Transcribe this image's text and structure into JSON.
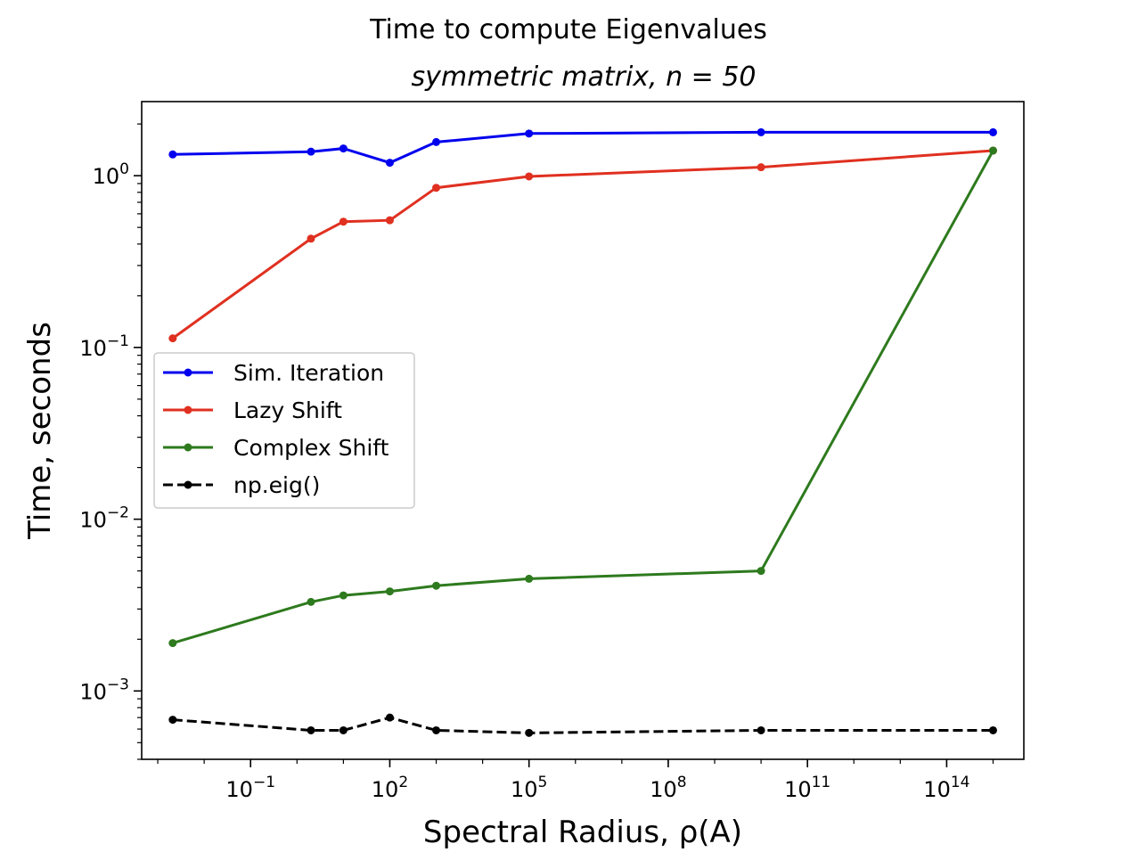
{
  "chart_data": {
    "type": "line",
    "title": "Time to compute Eigenvalues",
    "subtitle": "symmetric matrix, n = 50",
    "xlabel": "Spectral Radius, ρ(A)",
    "ylabel": "Time, seconds",
    "x_scale": "log",
    "y_scale": "log",
    "xlim": [
      0.00045,
      4600000000000000.0
    ],
    "ylim": [
      0.0004,
      2.7
    ],
    "grid": false,
    "legend_position": "center-left",
    "x_ticks": [
      {
        "value": 0.1,
        "label": "10",
        "exp": "−1"
      },
      {
        "value": 100,
        "label": "10",
        "exp": "2"
      },
      {
        "value": 100000,
        "label": "10",
        "exp": "5"
      },
      {
        "value": 100000000.0,
        "label": "10",
        "exp": "8"
      },
      {
        "value": 100000000000.0,
        "label": "10",
        "exp": "11"
      },
      {
        "value": 100000000000000.0,
        "label": "10",
        "exp": "14"
      }
    ],
    "y_ticks": [
      {
        "value": 1,
        "label": "10",
        "exp": "0"
      },
      {
        "value": 0.1,
        "label": "10",
        "exp": "−1"
      },
      {
        "value": 0.01,
        "label": "10",
        "exp": "−2"
      },
      {
        "value": 0.001,
        "label": "10",
        "exp": "−3"
      }
    ],
    "x": [
      0.0021,
      2.0,
      10.0,
      100,
      1000,
      100000,
      10000000000.0,
      1000000000000000.0
    ],
    "series": [
      {
        "name": "Sim. Iteration",
        "color": "#0000ee",
        "dash": false,
        "values": [
          1.33,
          1.38,
          1.44,
          1.19,
          1.57,
          1.76,
          1.79,
          1.79
        ]
      },
      {
        "name": "Lazy Shift",
        "color": "#e03020",
        "dash": false,
        "values": [
          0.113,
          0.43,
          0.54,
          0.55,
          0.85,
          0.99,
          1.12,
          1.4
        ]
      },
      {
        "name": "Complex Shift",
        "color": "#2e7a1e",
        "dash": false,
        "values": [
          0.0019,
          0.0033,
          0.0036,
          0.0038,
          0.0041,
          0.0045,
          0.005,
          1.4
        ]
      },
      {
        "name": "np.eig()",
        "color": "#000000",
        "dash": true,
        "values": [
          0.00068,
          0.00059,
          0.00059,
          0.0007,
          0.00059,
          0.00057,
          0.00059,
          0.00059
        ]
      }
    ]
  }
}
